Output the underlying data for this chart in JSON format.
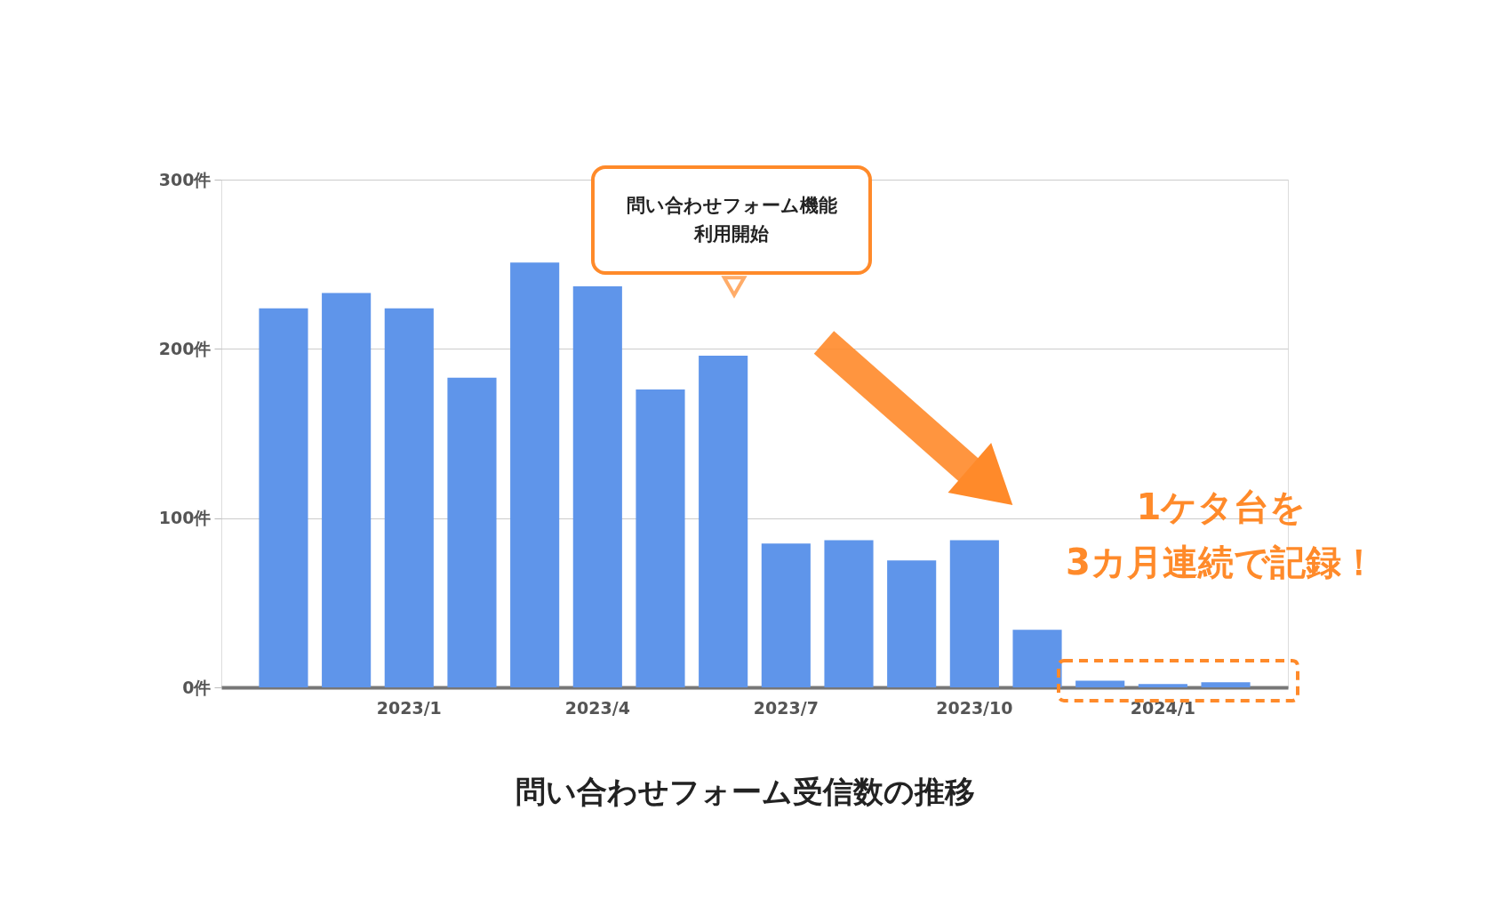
{
  "chart_data": {
    "type": "bar",
    "title": "問い合わせフォーム受信数の推移",
    "categories": [
      null,
      null,
      "2023/1",
      null,
      null,
      "2023/4",
      null,
      null,
      "2023/7",
      null,
      null,
      "2023/10",
      null,
      null,
      "2024/1",
      null
    ],
    "values": [
      224,
      233,
      224,
      183,
      251,
      237,
      176,
      196,
      85,
      87,
      75,
      87,
      34,
      4,
      2,
      3
    ],
    "color": "#5f95ea",
    "ylim": [
      0,
      300
    ],
    "yticks": [
      {
        "value": 0,
        "label": "0件"
      },
      {
        "value": 100,
        "label": "100件"
      },
      {
        "value": 200,
        "label": "200件"
      },
      {
        "value": 300,
        "label": "300件"
      }
    ],
    "grid": "y",
    "annotations": [
      "問い合わせフォーム機能",
      "利用開始",
      "1ケタ台を",
      "3カ月連続で記録！"
    ]
  }
}
